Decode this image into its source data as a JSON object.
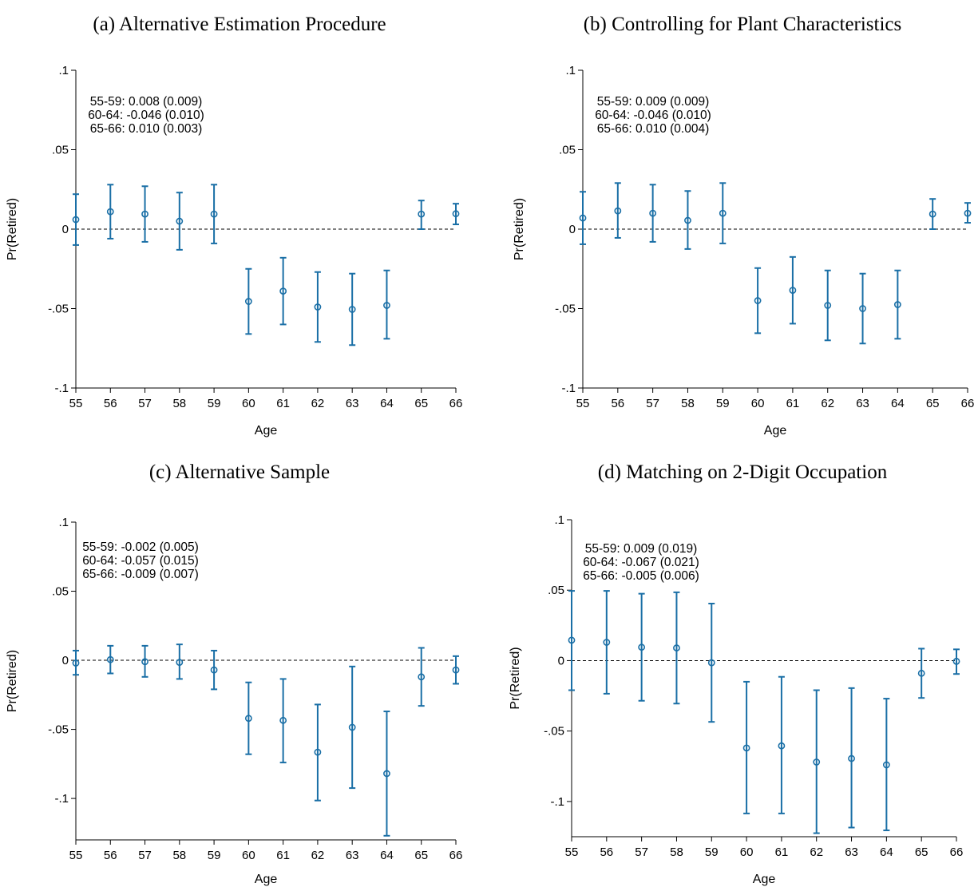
{
  "colors": {
    "series": "#1a6fa6",
    "axis": "#000000"
  },
  "chart_data": [
    {
      "type": "scatter",
      "title": "(a) Alternative Estimation Procedure",
      "xlabel": "Age",
      "ylabel": "Pr(Retired)",
      "x": [
        55,
        56,
        57,
        58,
        59,
        60,
        61,
        62,
        63,
        64,
        65,
        66
      ],
      "x_tick_labels": [
        "55",
        "56",
        "57",
        "58",
        "59",
        "60",
        "61",
        "62",
        "63",
        "64",
        "65",
        "66"
      ],
      "y_ticks": [
        0.1,
        0.05,
        0,
        -0.05,
        -0.1
      ],
      "y_tick_labels": [
        ".1",
        ".05",
        "0",
        "-.05",
        "-.1"
      ],
      "ylim": [
        -0.1,
        0.1
      ],
      "series": [
        {
          "values": [
            0.006,
            0.011,
            0.0095,
            0.005,
            0.0095,
            -0.0455,
            -0.039,
            -0.049,
            -0.0505,
            -0.048,
            0.0095,
            0.0097
          ],
          "ci_low": [
            -0.01,
            -0.006,
            -0.008,
            -0.013,
            -0.009,
            -0.066,
            -0.06,
            -0.071,
            -0.073,
            -0.069,
            0.0,
            0.003
          ],
          "ci_high": [
            0.022,
            0.028,
            0.027,
            0.023,
            0.028,
            -0.025,
            -0.018,
            -0.027,
            -0.028,
            -0.026,
            0.018,
            0.016
          ]
        }
      ],
      "annotations": [
        "55-59: 0.008 (0.009)",
        "60-64: -0.046 (0.010)",
        "65-66: 0.010 (0.003)"
      ],
      "reference_line": 0
    },
    {
      "type": "scatter",
      "title": "(b) Controlling for Plant Characteristics",
      "xlabel": "Age",
      "ylabel": "Pr(Retired)",
      "x": [
        55,
        56,
        57,
        58,
        59,
        60,
        61,
        62,
        63,
        64,
        65,
        66
      ],
      "x_tick_labels": [
        "55",
        "56",
        "57",
        "58",
        "59",
        "60",
        "61",
        "62",
        "63",
        "64",
        "65",
        "66"
      ],
      "y_ticks": [
        0.1,
        0.05,
        0,
        -0.05,
        -0.1
      ],
      "y_tick_labels": [
        ".1",
        ".05",
        "0",
        "-.05",
        "-.1"
      ],
      "ylim": [
        -0.1,
        0.1
      ],
      "series": [
        {
          "values": [
            0.007,
            0.0115,
            0.01,
            0.0055,
            0.01,
            -0.045,
            -0.0385,
            -0.048,
            -0.05,
            -0.0475,
            0.0095,
            0.01
          ],
          "ci_low": [
            -0.0095,
            -0.0055,
            -0.008,
            -0.0125,
            -0.009,
            -0.0655,
            -0.0595,
            -0.07,
            -0.072,
            -0.069,
            0.0,
            0.004
          ],
          "ci_high": [
            0.0235,
            0.029,
            0.028,
            0.024,
            0.029,
            -0.0245,
            -0.0175,
            -0.026,
            -0.028,
            -0.026,
            0.019,
            0.0165
          ]
        }
      ],
      "annotations": [
        "55-59: 0.009 (0.009)",
        "60-64: -0.046 (0.010)",
        "65-66: 0.010 (0.004)"
      ],
      "reference_line": 0
    },
    {
      "type": "scatter",
      "title": "(c) Alternative Sample",
      "xlabel": "Age",
      "ylabel": "Pr(Retired)",
      "x": [
        55,
        56,
        57,
        58,
        59,
        60,
        61,
        62,
        63,
        64,
        65,
        66
      ],
      "x_tick_labels": [
        "55",
        "56",
        "57",
        "58",
        "59",
        "60",
        "61",
        "62",
        "63",
        "64",
        "65",
        "66"
      ],
      "y_ticks": [
        0.1,
        0.05,
        0,
        -0.05,
        -0.1
      ],
      "y_tick_labels": [
        ".1",
        ".05",
        "0",
        "-.05",
        "-.1"
      ],
      "ylim": [
        -0.13,
        0.1
      ],
      "series": [
        {
          "values": [
            -0.002,
            0.0005,
            -0.001,
            -0.0015,
            -0.007,
            -0.042,
            -0.0435,
            -0.0665,
            -0.0485,
            -0.082,
            -0.012,
            -0.007
          ],
          "ci_low": [
            -0.0105,
            -0.0095,
            -0.012,
            -0.0135,
            -0.021,
            -0.068,
            -0.074,
            -0.1015,
            -0.0925,
            -0.127,
            -0.033,
            -0.017
          ],
          "ci_high": [
            0.007,
            0.0105,
            0.0105,
            0.0115,
            0.007,
            -0.016,
            -0.0135,
            -0.032,
            -0.0045,
            -0.037,
            0.009,
            0.003
          ]
        }
      ],
      "annotations": [
        "55-59: -0.002 (0.005)",
        "60-64: -0.057 (0.015)",
        "65-66: -0.009 (0.007)"
      ],
      "reference_line": 0
    },
    {
      "type": "scatter",
      "title": "(d) Matching on 2-Digit Occupation",
      "xlabel": "Age",
      "ylabel": "Pr(Retired)",
      "x": [
        55,
        56,
        57,
        58,
        59,
        60,
        61,
        62,
        63,
        64,
        65,
        66
      ],
      "x_tick_labels": [
        "55",
        "56",
        "57",
        "58",
        "59",
        "60",
        "61",
        "62",
        "63",
        "64",
        "65",
        "66"
      ],
      "y_ticks": [
        0.1,
        0.05,
        0,
        -0.05,
        -0.1
      ],
      "y_tick_labels": [
        ".1",
        ".05",
        "0",
        "-.05",
        "-.1"
      ],
      "ylim": [
        -0.125,
        0.1
      ],
      "series": [
        {
          "values": [
            0.0145,
            0.013,
            0.0095,
            0.009,
            -0.0015,
            -0.062,
            -0.0605,
            -0.072,
            -0.0695,
            -0.074,
            -0.009,
            -0.0005
          ],
          "ci_low": [
            -0.021,
            -0.0235,
            -0.0285,
            -0.0305,
            -0.0435,
            -0.1085,
            -0.1085,
            -0.1225,
            -0.1185,
            -0.1205,
            -0.0265,
            -0.0095
          ],
          "ci_high": [
            0.0495,
            0.0495,
            0.0475,
            0.0485,
            0.0405,
            -0.015,
            -0.0115,
            -0.021,
            -0.0195,
            -0.027,
            0.0085,
            0.008
          ]
        }
      ],
      "annotations": [
        "55-59: 0.009 (0.019)",
        "60-64: -0.067 (0.021)",
        "65-66: -0.005 (0.006)"
      ],
      "reference_line": 0
    }
  ]
}
